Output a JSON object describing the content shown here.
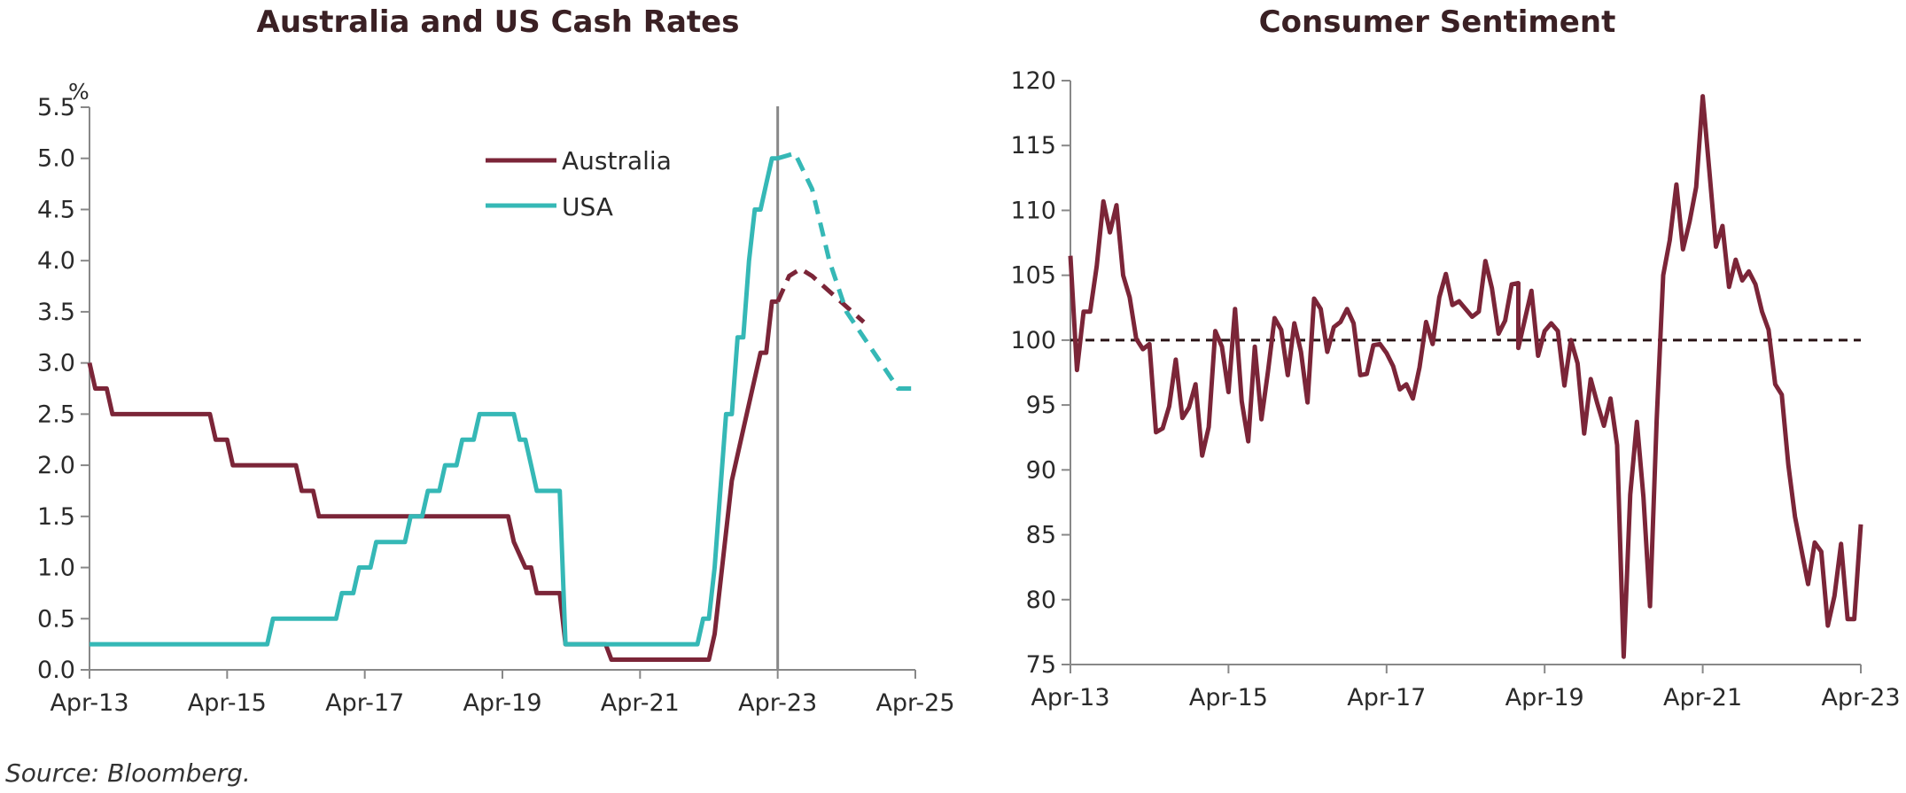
{
  "source": "Source: Bloomberg.",
  "colors": {
    "australia": "#7b2538",
    "usa": "#35b8b6",
    "axis": "#888888",
    "reference": "#2a1416"
  },
  "chart_data": [
    {
      "type": "line",
      "title": "Australia and US Cash Rates",
      "unit_label": "%",
      "xlabel": "",
      "ylabel": "",
      "ylim": [
        0,
        5.5
      ],
      "yticks": [
        "0.0",
        "0.5",
        "1.0",
        "1.5",
        "2.0",
        "2.5",
        "3.0",
        "3.5",
        "4.0",
        "4.5",
        "5.0",
        "5.5"
      ],
      "xlim": [
        "2013-04",
        "2025-04"
      ],
      "xticks": [
        "Apr-13",
        "Apr-15",
        "Apr-17",
        "Apr-19",
        "Apr-21",
        "Apr-23",
        "Apr-25"
      ],
      "legend": "top-center",
      "vertical_marker": "2023-04",
      "series": [
        {
          "name": "Australia",
          "color": "#7b2538",
          "points": [
            [
              "2013-04",
              3.0
            ],
            [
              "2013-05",
              2.75
            ],
            [
              "2013-07",
              2.75
            ],
            [
              "2013-08",
              2.5
            ],
            [
              "2015-01",
              2.5
            ],
            [
              "2015-02",
              2.25
            ],
            [
              "2015-04",
              2.25
            ],
            [
              "2015-05",
              2.0
            ],
            [
              "2016-04",
              2.0
            ],
            [
              "2016-05",
              1.75
            ],
            [
              "2016-07",
              1.75
            ],
            [
              "2016-08",
              1.5
            ],
            [
              "2019-05",
              1.5
            ],
            [
              "2019-06",
              1.25
            ],
            [
              "2019-08",
              1.0
            ],
            [
              "2019-09",
              1.0
            ],
            [
              "2019-10",
              0.75
            ],
            [
              "2020-02",
              0.75
            ],
            [
              "2020-03",
              0.25
            ],
            [
              "2020-10",
              0.25
            ],
            [
              "2020-11",
              0.1
            ],
            [
              "2022-04",
              0.1
            ],
            [
              "2022-05",
              0.35
            ],
            [
              "2022-08",
              1.85
            ],
            [
              "2022-10",
              2.35
            ],
            [
              "2022-12",
              2.85
            ],
            [
              "2023-01",
              3.1
            ],
            [
              "2023-02",
              3.1
            ],
            [
              "2023-03",
              3.6
            ],
            [
              "2023-04",
              3.6
            ]
          ],
          "forecast": [
            [
              "2023-04",
              3.6
            ],
            [
              "2023-06",
              3.85
            ],
            [
              "2023-08",
              3.92
            ],
            [
              "2023-10",
              3.85
            ],
            [
              "2024-01",
              3.7
            ],
            [
              "2024-04",
              3.55
            ],
            [
              "2024-07",
              3.4
            ]
          ]
        },
        {
          "name": "USA",
          "color": "#35b8b6",
          "points": [
            [
              "2013-04",
              0.25
            ],
            [
              "2015-11",
              0.25
            ],
            [
              "2015-12",
              0.5
            ],
            [
              "2016-11",
              0.5
            ],
            [
              "2016-12",
              0.75
            ],
            [
              "2017-02",
              0.75
            ],
            [
              "2017-03",
              1.0
            ],
            [
              "2017-05",
              1.0
            ],
            [
              "2017-06",
              1.25
            ],
            [
              "2017-11",
              1.25
            ],
            [
              "2017-12",
              1.5
            ],
            [
              "2018-02",
              1.5
            ],
            [
              "2018-03",
              1.75
            ],
            [
              "2018-05",
              1.75
            ],
            [
              "2018-06",
              2.0
            ],
            [
              "2018-08",
              2.0
            ],
            [
              "2018-09",
              2.25
            ],
            [
              "2018-11",
              2.25
            ],
            [
              "2018-12",
              2.5
            ],
            [
              "2019-06",
              2.5
            ],
            [
              "2019-07",
              2.25
            ],
            [
              "2019-08",
              2.25
            ],
            [
              "2019-09",
              2.0
            ],
            [
              "2019-10",
              1.75
            ],
            [
              "2020-02",
              1.75
            ],
            [
              "2020-03",
              0.25
            ],
            [
              "2022-02",
              0.25
            ],
            [
              "2022-03",
              0.5
            ],
            [
              "2022-04",
              0.5
            ],
            [
              "2022-05",
              1.0
            ],
            [
              "2022-06",
              1.75
            ],
            [
              "2022-07",
              2.5
            ],
            [
              "2022-08",
              2.5
            ],
            [
              "2022-09",
              3.25
            ],
            [
              "2022-10",
              3.25
            ],
            [
              "2022-11",
              4.0
            ],
            [
              "2022-12",
              4.5
            ],
            [
              "2023-01",
              4.5
            ],
            [
              "2023-02",
              4.75
            ],
            [
              "2023-03",
              5.0
            ],
            [
              "2023-04",
              5.0
            ]
          ],
          "forecast": [
            [
              "2023-04",
              5.0
            ],
            [
              "2023-07",
              5.05
            ],
            [
              "2023-10",
              4.7
            ],
            [
              "2024-01",
              4.0
            ],
            [
              "2024-04",
              3.5
            ],
            [
              "2024-07",
              3.25
            ],
            [
              "2024-10",
              3.0
            ],
            [
              "2025-01",
              2.75
            ],
            [
              "2025-04",
              2.75
            ]
          ]
        }
      ]
    },
    {
      "type": "line",
      "title": "Consumer Sentiment",
      "xlabel": "",
      "ylabel": "",
      "ylim": [
        75,
        120
      ],
      "yticks": [
        "75",
        "80",
        "85",
        "90",
        "95",
        "100",
        "105",
        "110",
        "115",
        "120"
      ],
      "xlim": [
        "2013-04",
        "2023-04"
      ],
      "xticks": [
        "Apr-13",
        "Apr-15",
        "Apr-17",
        "Apr-19",
        "Apr-21",
        "Apr-23"
      ],
      "reference_line": 100,
      "series": [
        {
          "color": "#7b2538",
          "points": [
            [
              "2013-04",
              106.5
            ],
            [
              "2013-05",
              97.7
            ],
            [
              "2013-06",
              102.2
            ],
            [
              "2013-07",
              102.2
            ],
            [
              "2013-08",
              105.7
            ],
            [
              "2013-09",
              110.7
            ],
            [
              "2013-10",
              108.3
            ],
            [
              "2013-11",
              110.4
            ],
            [
              "2013-12",
              105.0
            ],
            [
              "2014-01",
              103.3
            ],
            [
              "2014-02",
              100.1
            ],
            [
              "2014-03",
              99.3
            ],
            [
              "2014-04",
              99.7
            ],
            [
              "2014-05",
              92.9
            ],
            [
              "2014-06",
              93.2
            ],
            [
              "2014-07",
              94.9
            ],
            [
              "2014-08",
              98.5
            ],
            [
              "2014-09",
              94.0
            ],
            [
              "2014-10",
              94.8
            ],
            [
              "2014-11",
              96.6
            ],
            [
              "2014-12",
              91.1
            ],
            [
              "2015-01",
              93.3
            ],
            [
              "2015-02",
              100.7
            ],
            [
              "2015-03",
              99.5
            ],
            [
              "2015-04",
              96.0
            ],
            [
              "2015-05",
              102.4
            ],
            [
              "2015-06",
              95.3
            ],
            [
              "2015-07",
              92.2
            ],
            [
              "2015-08",
              99.5
            ],
            [
              "2015-09",
              93.9
            ],
            [
              "2015-10",
              97.6
            ],
            [
              "2015-11",
              101.7
            ],
            [
              "2015-12",
              100.8
            ],
            [
              "2016-01",
              97.3
            ],
            [
              "2016-02",
              101.3
            ],
            [
              "2016-03",
              99.1
            ],
            [
              "2016-04",
              95.2
            ],
            [
              "2016-05",
              103.2
            ],
            [
              "2016-06",
              102.4
            ],
            [
              "2016-07",
              99.1
            ],
            [
              "2016-08",
              101.0
            ],
            [
              "2016-09",
              101.4
            ],
            [
              "2016-10",
              102.4
            ],
            [
              "2016-11",
              101.3
            ],
            [
              "2016-12",
              97.3
            ],
            [
              "2017-01",
              97.4
            ],
            [
              "2017-02",
              99.6
            ],
            [
              "2017-03",
              99.7
            ],
            [
              "2017-04",
              99.0
            ],
            [
              "2017-05",
              98.0
            ],
            [
              "2017-06",
              96.2
            ],
            [
              "2017-07",
              96.6
            ],
            [
              "2017-08",
              95.5
            ],
            [
              "2017-09",
              97.9
            ],
            [
              "2017-10",
              101.4
            ],
            [
              "2017-11",
              99.7
            ],
            [
              "2017-12",
              103.3
            ],
            [
              "2018-01",
              105.1
            ],
            [
              "2018-02",
              102.7
            ],
            [
              "2018-03",
              103.0
            ],
            [
              "2018-04",
              102.4
            ],
            [
              "2018-05",
              101.8
            ],
            [
              "2018-06",
              102.2
            ],
            [
              "2018-07",
              106.1
            ],
            [
              "2018-08",
              104.0
            ],
            [
              "2018-09",
              100.5
            ],
            [
              "2018-10",
              101.5
            ],
            [
              "2018-11",
              104.3
            ],
            [
              "2018-12",
              104.4
            ],
            [
              "2018-12",
              99.4
            ],
            [
              "2019-02",
              103.8
            ],
            [
              "2019-03",
              98.8
            ],
            [
              "2019-04",
              100.7
            ],
            [
              "2019-05",
              101.3
            ],
            [
              "2019-06",
              100.7
            ],
            [
              "2019-07",
              96.5
            ],
            [
              "2019-08",
              100.0
            ],
            [
              "2019-09",
              98.2
            ],
            [
              "2019-10",
              92.8
            ],
            [
              "2019-11",
              97.0
            ],
            [
              "2019-12",
              95.1
            ],
            [
              "2020-01",
              93.4
            ],
            [
              "2020-02",
              95.5
            ],
            [
              "2020-03",
              91.9
            ],
            [
              "2020-04",
              75.6
            ],
            [
              "2020-05",
              88.1
            ],
            [
              "2020-06",
              93.7
            ],
            [
              "2020-07",
              87.9
            ],
            [
              "2020-08",
              79.5
            ],
            [
              "2020-09",
              93.8
            ],
            [
              "2020-10",
              105.0
            ],
            [
              "2020-11",
              107.7
            ],
            [
              "2020-12",
              112.0
            ],
            [
              "2021-01",
              107.0
            ],
            [
              "2021-02",
              109.1
            ],
            [
              "2021-03",
              111.8
            ],
            [
              "2021-04",
              118.8
            ],
            [
              "2021-05",
              113.1
            ],
            [
              "2021-06",
              107.2
            ],
            [
              "2021-07",
              108.8
            ],
            [
              "2021-08",
              104.1
            ],
            [
              "2021-09",
              106.2
            ],
            [
              "2021-10",
              104.6
            ],
            [
              "2021-11",
              105.3
            ],
            [
              "2021-12",
              104.3
            ],
            [
              "2022-01",
              102.2
            ],
            [
              "2022-02",
              100.8
            ],
            [
              "2022-03",
              96.6
            ],
            [
              "2022-04",
              95.8
            ],
            [
              "2022-05",
              90.4
            ],
            [
              "2022-06",
              86.4
            ],
            [
              "2022-07",
              83.8
            ],
            [
              "2022-08",
              81.2
            ],
            [
              "2022-09",
              84.4
            ],
            [
              "2022-10",
              83.7
            ],
            [
              "2022-11",
              78.0
            ],
            [
              "2022-12",
              80.3
            ],
            [
              "2023-01",
              84.3
            ],
            [
              "2023-02",
              78.5
            ],
            [
              "2023-03",
              78.5
            ],
            [
              "2023-04",
              85.8
            ]
          ]
        }
      ]
    }
  ]
}
